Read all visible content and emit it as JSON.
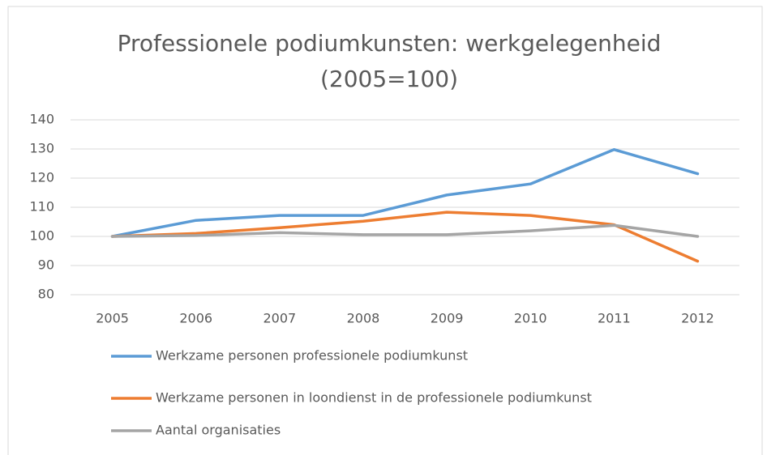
{
  "chart_data": {
    "type": "line",
    "title": [
      "Professionele podiumkunsten: werkgelegenheid",
      "(2005=100)"
    ],
    "categories": [
      "2005",
      "2006",
      "2007",
      "2008",
      "2009",
      "2010",
      "2011",
      "2012"
    ],
    "series": [
      {
        "name": "Werkzame personen professionele podiumkunst",
        "color": "#5b9bd5",
        "values": [
          100,
          105.5,
          107.2,
          107.2,
          114.2,
          118,
          129.8,
          121.5
        ]
      },
      {
        "name": "Werkzame personen in loondienst in de professionele podiumkunst",
        "color": "#ed7d31",
        "values": [
          100,
          101,
          103,
          105.2,
          108.3,
          107.2,
          104,
          91.5
        ]
      },
      {
        "name": "Aantal organisaties",
        "color": "#a5a5a5",
        "values": [
          100,
          100.3,
          101.3,
          100.6,
          100.6,
          101.9,
          103.8,
          100
        ]
      }
    ],
    "ylim": [
      80,
      140
    ],
    "yticks": [
      80,
      90,
      100,
      110,
      120,
      130,
      140
    ],
    "grid": true,
    "legend": "bottom"
  }
}
